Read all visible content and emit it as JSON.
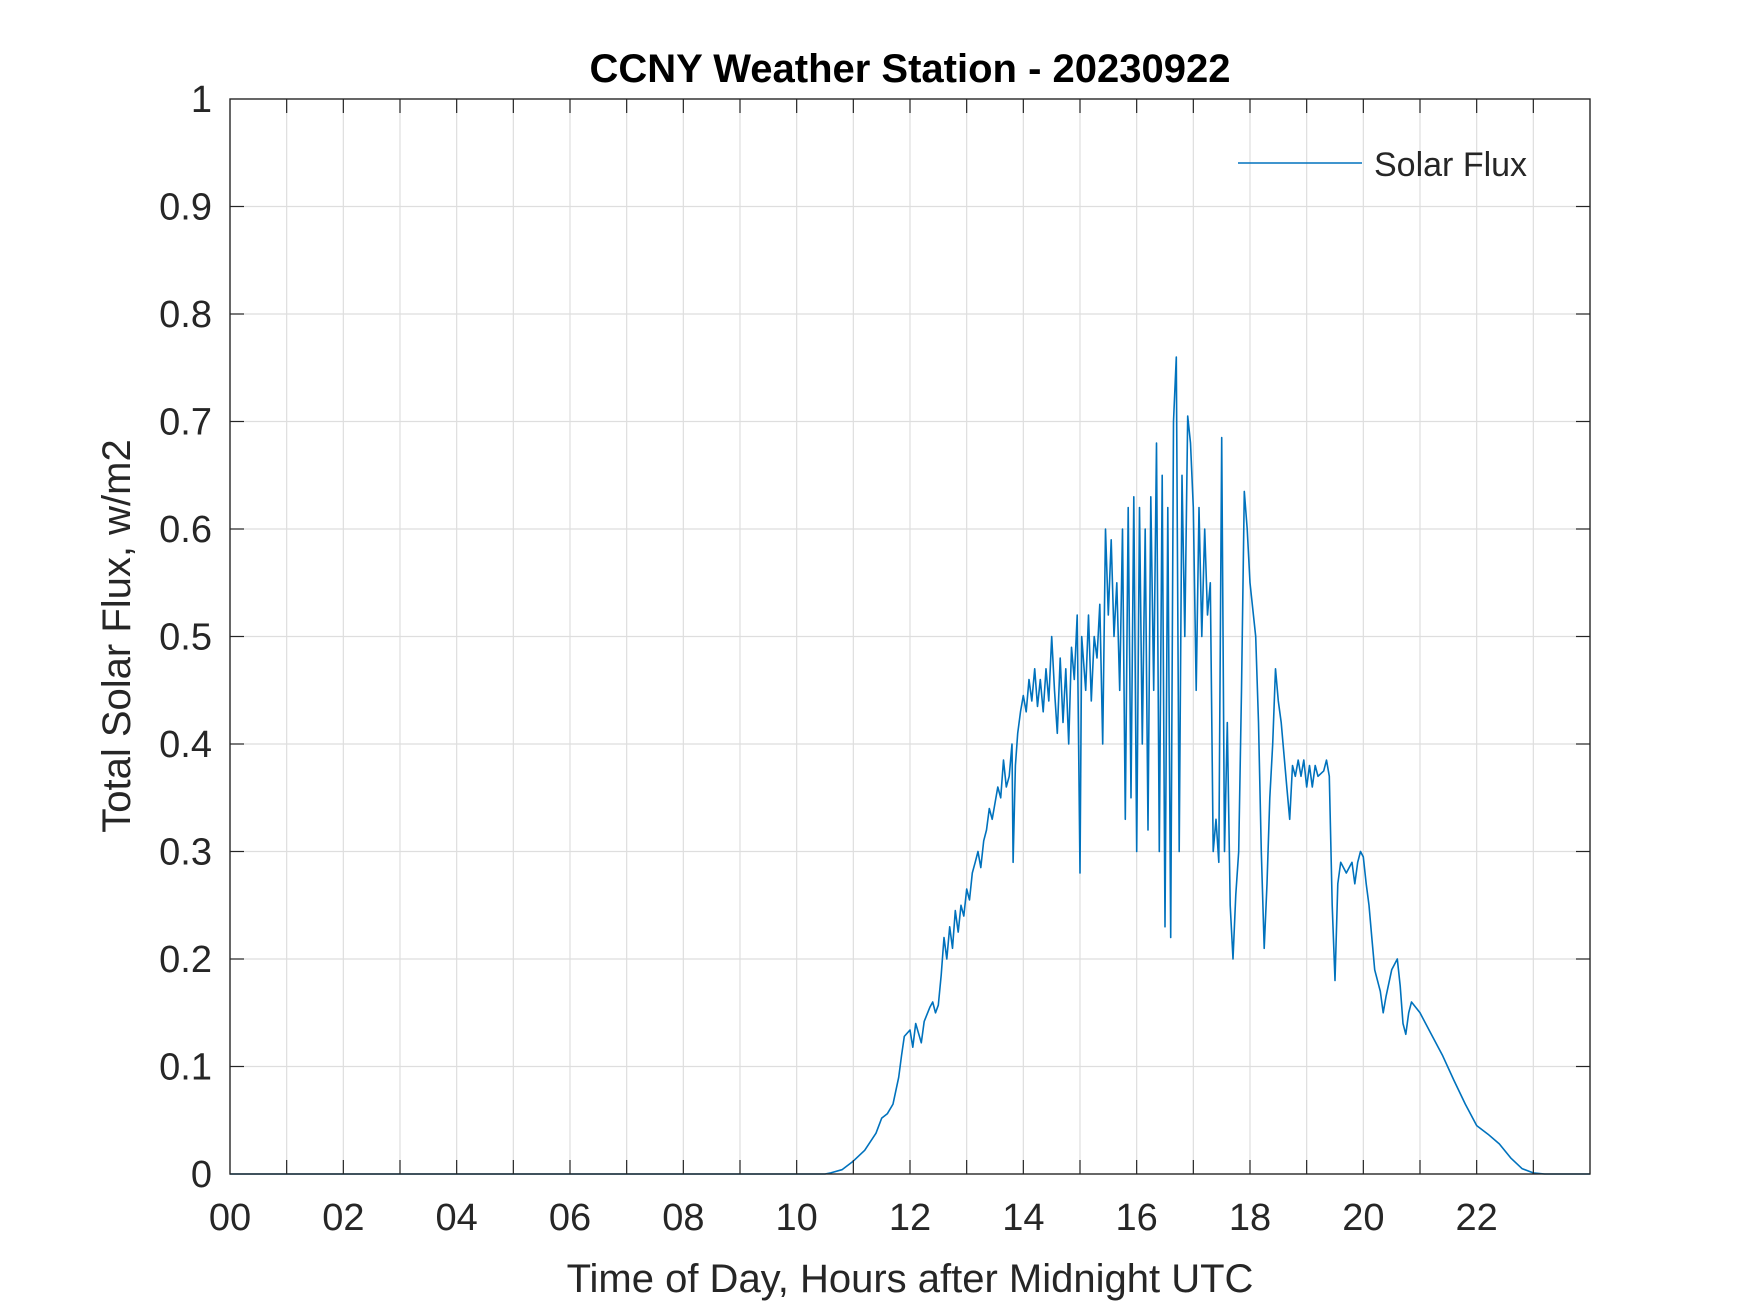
{
  "chart_data": {
    "type": "line",
    "title": "CCNY Weather Station - 20230922",
    "xlabel": "Time of Day, Hours after Midnight UTC",
    "ylabel": "Total Solar Flux, w/m2",
    "xlim": [
      0,
      24
    ],
    "ylim": [
      0,
      1
    ],
    "grid": true,
    "legend_position": "top-right",
    "x_ticks": [
      0,
      2,
      4,
      6,
      8,
      10,
      12,
      14,
      16,
      18,
      20,
      22
    ],
    "x_tick_labels": [
      "00",
      "02",
      "04",
      "06",
      "08",
      "10",
      "12",
      "14",
      "16",
      "18",
      "20",
      "22"
    ],
    "y_ticks": [
      0,
      0.1,
      0.2,
      0.3,
      0.4,
      0.5,
      0.6,
      0.7,
      0.8,
      0.9,
      1
    ],
    "y_tick_labels": [
      "0",
      "0.1",
      "0.2",
      "0.3",
      "0.4",
      "0.5",
      "0.6",
      "0.7",
      "0.8",
      "0.9",
      "1"
    ],
    "series": [
      {
        "name": "Solar Flux",
        "color": "#0072BD",
        "points": [
          [
            0,
            0
          ],
          [
            10.5,
            0
          ],
          [
            10.6,
            0.001
          ],
          [
            10.8,
            0.004
          ],
          [
            11.0,
            0.012
          ],
          [
            11.2,
            0.022
          ],
          [
            11.4,
            0.038
          ],
          [
            11.5,
            0.052
          ],
          [
            11.6,
            0.056
          ],
          [
            11.7,
            0.065
          ],
          [
            11.8,
            0.09
          ],
          [
            11.85,
            0.11
          ],
          [
            11.9,
            0.128
          ],
          [
            12.0,
            0.134
          ],
          [
            12.05,
            0.118
          ],
          [
            12.1,
            0.14
          ],
          [
            12.2,
            0.122
          ],
          [
            12.25,
            0.142
          ],
          [
            12.35,
            0.155
          ],
          [
            12.4,
            0.16
          ],
          [
            12.45,
            0.15
          ],
          [
            12.5,
            0.157
          ],
          [
            12.55,
            0.185
          ],
          [
            12.6,
            0.22
          ],
          [
            12.65,
            0.2
          ],
          [
            12.7,
            0.23
          ],
          [
            12.75,
            0.21
          ],
          [
            12.8,
            0.245
          ],
          [
            12.85,
            0.225
          ],
          [
            12.9,
            0.25
          ],
          [
            12.95,
            0.24
          ],
          [
            13.0,
            0.265
          ],
          [
            13.05,
            0.255
          ],
          [
            13.1,
            0.28
          ],
          [
            13.15,
            0.29
          ],
          [
            13.2,
            0.3
          ],
          [
            13.25,
            0.285
          ],
          [
            13.3,
            0.31
          ],
          [
            13.35,
            0.32
          ],
          [
            13.4,
            0.34
          ],
          [
            13.45,
            0.33
          ],
          [
            13.5,
            0.345
          ],
          [
            13.55,
            0.36
          ],
          [
            13.6,
            0.35
          ],
          [
            13.65,
            0.385
          ],
          [
            13.7,
            0.36
          ],
          [
            13.75,
            0.37
          ],
          [
            13.8,
            0.4
          ],
          [
            13.82,
            0.29
          ],
          [
            13.86,
            0.38
          ],
          [
            13.9,
            0.41
          ],
          [
            13.95,
            0.43
          ],
          [
            14.0,
            0.445
          ],
          [
            14.05,
            0.43
          ],
          [
            14.1,
            0.46
          ],
          [
            14.15,
            0.44
          ],
          [
            14.2,
            0.47
          ],
          [
            14.25,
            0.435
          ],
          [
            14.3,
            0.46
          ],
          [
            14.35,
            0.43
          ],
          [
            14.4,
            0.47
          ],
          [
            14.45,
            0.44
          ],
          [
            14.5,
            0.5
          ],
          [
            14.55,
            0.45
          ],
          [
            14.6,
            0.41
          ],
          [
            14.65,
            0.48
          ],
          [
            14.7,
            0.42
          ],
          [
            14.75,
            0.47
          ],
          [
            14.8,
            0.4
          ],
          [
            14.85,
            0.49
          ],
          [
            14.9,
            0.46
          ],
          [
            14.95,
            0.52
          ],
          [
            15.0,
            0.28
          ],
          [
            15.03,
            0.5
          ],
          [
            15.1,
            0.45
          ],
          [
            15.15,
            0.52
          ],
          [
            15.2,
            0.44
          ],
          [
            15.25,
            0.5
          ],
          [
            15.3,
            0.48
          ],
          [
            15.35,
            0.53
          ],
          [
            15.4,
            0.4
          ],
          [
            15.45,
            0.6
          ],
          [
            15.5,
            0.52
          ],
          [
            15.55,
            0.59
          ],
          [
            15.6,
            0.5
          ],
          [
            15.65,
            0.55
          ],
          [
            15.7,
            0.45
          ],
          [
            15.75,
            0.6
          ],
          [
            15.8,
            0.33
          ],
          [
            15.85,
            0.62
          ],
          [
            15.9,
            0.35
          ],
          [
            15.95,
            0.63
          ],
          [
            16.0,
            0.3
          ],
          [
            16.05,
            0.62
          ],
          [
            16.1,
            0.4
          ],
          [
            16.15,
            0.6
          ],
          [
            16.2,
            0.32
          ],
          [
            16.25,
            0.63
          ],
          [
            16.3,
            0.45
          ],
          [
            16.35,
            0.68
          ],
          [
            16.4,
            0.3
          ],
          [
            16.45,
            0.65
          ],
          [
            16.5,
            0.23
          ],
          [
            16.55,
            0.62
          ],
          [
            16.6,
            0.22
          ],
          [
            16.65,
            0.7
          ],
          [
            16.7,
            0.76
          ],
          [
            16.75,
            0.3
          ],
          [
            16.8,
            0.65
          ],
          [
            16.85,
            0.5
          ],
          [
            16.9,
            0.705
          ],
          [
            16.95,
            0.68
          ],
          [
            17.0,
            0.62
          ],
          [
            17.05,
            0.45
          ],
          [
            17.1,
            0.62
          ],
          [
            17.15,
            0.5
          ],
          [
            17.2,
            0.6
          ],
          [
            17.25,
            0.52
          ],
          [
            17.3,
            0.55
          ],
          [
            17.35,
            0.3
          ],
          [
            17.4,
            0.33
          ],
          [
            17.45,
            0.29
          ],
          [
            17.5,
            0.685
          ],
          [
            17.55,
            0.3
          ],
          [
            17.6,
            0.42
          ],
          [
            17.65,
            0.25
          ],
          [
            17.7,
            0.2
          ],
          [
            17.75,
            0.26
          ],
          [
            17.8,
            0.3
          ],
          [
            17.85,
            0.45
          ],
          [
            17.9,
            0.635
          ],
          [
            17.95,
            0.6
          ],
          [
            18.0,
            0.55
          ],
          [
            18.1,
            0.5
          ],
          [
            18.15,
            0.42
          ],
          [
            18.2,
            0.3
          ],
          [
            18.25,
            0.21
          ],
          [
            18.3,
            0.27
          ],
          [
            18.35,
            0.35
          ],
          [
            18.4,
            0.4
          ],
          [
            18.45,
            0.47
          ],
          [
            18.5,
            0.44
          ],
          [
            18.55,
            0.42
          ],
          [
            18.6,
            0.39
          ],
          [
            18.65,
            0.36
          ],
          [
            18.7,
            0.33
          ],
          [
            18.75,
            0.38
          ],
          [
            18.8,
            0.37
          ],
          [
            18.85,
            0.385
          ],
          [
            18.9,
            0.37
          ],
          [
            18.95,
            0.385
          ],
          [
            19.0,
            0.36
          ],
          [
            19.05,
            0.38
          ],
          [
            19.1,
            0.36
          ],
          [
            19.15,
            0.38
          ],
          [
            19.2,
            0.37
          ],
          [
            19.3,
            0.375
          ],
          [
            19.35,
            0.385
          ],
          [
            19.4,
            0.37
          ],
          [
            19.45,
            0.25
          ],
          [
            19.5,
            0.18
          ],
          [
            19.55,
            0.27
          ],
          [
            19.6,
            0.29
          ],
          [
            19.7,
            0.28
          ],
          [
            19.8,
            0.29
          ],
          [
            19.85,
            0.27
          ],
          [
            19.9,
            0.29
          ],
          [
            19.95,
            0.3
          ],
          [
            20.0,
            0.295
          ],
          [
            20.05,
            0.27
          ],
          [
            20.1,
            0.25
          ],
          [
            20.15,
            0.22
          ],
          [
            20.2,
            0.19
          ],
          [
            20.3,
            0.17
          ],
          [
            20.35,
            0.15
          ],
          [
            20.4,
            0.165
          ],
          [
            20.5,
            0.19
          ],
          [
            20.6,
            0.2
          ],
          [
            20.65,
            0.175
          ],
          [
            20.7,
            0.14
          ],
          [
            20.75,
            0.13
          ],
          [
            20.8,
            0.15
          ],
          [
            20.85,
            0.16
          ],
          [
            21.0,
            0.15
          ],
          [
            21.2,
            0.13
          ],
          [
            21.4,
            0.11
          ],
          [
            21.6,
            0.087
          ],
          [
            21.8,
            0.065
          ],
          [
            22.0,
            0.045
          ],
          [
            22.2,
            0.037
          ],
          [
            22.4,
            0.028
          ],
          [
            22.6,
            0.015
          ],
          [
            22.8,
            0.005
          ],
          [
            23.0,
            0.001
          ],
          [
            23.2,
            0
          ],
          [
            24.0,
            0
          ]
        ]
      }
    ]
  }
}
